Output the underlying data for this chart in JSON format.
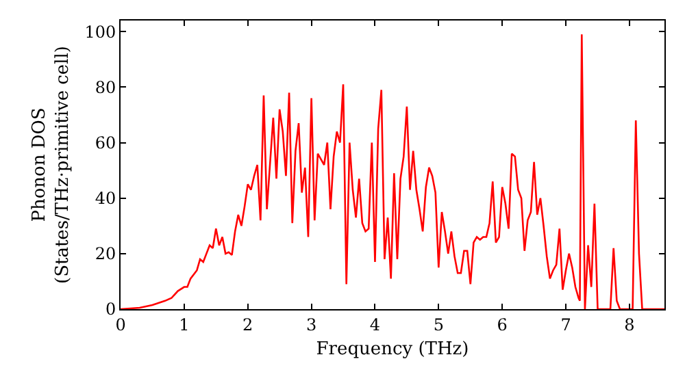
{
  "chart_data": {
    "type": "line",
    "xlabel": "Frequency (THz)",
    "ylabel": "Phonon DOS\n(States/THz·primitive cell)",
    "xlim": [
      0,
      8.55
    ],
    "ylim": [
      0,
      104
    ],
    "xticks": [
      0,
      1,
      2,
      3,
      4,
      5,
      6,
      7,
      8
    ],
    "yticks": [
      0,
      20,
      40,
      60,
      80,
      100
    ],
    "marker": "none",
    "line_style": "solid",
    "x": [
      0,
      0.3,
      0.5,
      0.7,
      0.8,
      0.9,
      1.0,
      1.05,
      1.1,
      1.2,
      1.25,
      1.3,
      1.35,
      1.4,
      1.45,
      1.5,
      1.55,
      1.6,
      1.65,
      1.7,
      1.75,
      1.8,
      1.85,
      1.9,
      1.95,
      2.0,
      2.05,
      2.1,
      2.15,
      2.2,
      2.25,
      2.3,
      2.4,
      2.45,
      2.5,
      2.55,
      2.6,
      2.65,
      2.7,
      2.75,
      2.8,
      2.85,
      2.9,
      2.95,
      3.0,
      3.05,
      3.1,
      3.15,
      3.2,
      3.25,
      3.3,
      3.35,
      3.4,
      3.45,
      3.5,
      3.55,
      3.6,
      3.65,
      3.7,
      3.75,
      3.8,
      3.85,
      3.9,
      3.95,
      4.0,
      4.05,
      4.1,
      4.15,
      4.2,
      4.25,
      4.3,
      4.35,
      4.4,
      4.45,
      4.5,
      4.55,
      4.6,
      4.65,
      4.7,
      4.75,
      4.8,
      4.85,
      4.9,
      4.95,
      5.0,
      5.05,
      5.1,
      5.15,
      5.2,
      5.25,
      5.3,
      5.35,
      5.4,
      5.45,
      5.5,
      5.55,
      5.6,
      5.65,
      5.7,
      5.75,
      5.8,
      5.85,
      5.9,
      5.95,
      6.0,
      6.05,
      6.1,
      6.15,
      6.2,
      6.25,
      6.3,
      6.35,
      6.4,
      6.45,
      6.5,
      6.55,
      6.6,
      6.65,
      6.7,
      6.75,
      6.8,
      6.85,
      6.9,
      6.95,
      7.0,
      7.05,
      7.1,
      7.15,
      7.2,
      7.22,
      7.25,
      7.3,
      7.35,
      7.4,
      7.45,
      7.5,
      7.6,
      7.7,
      7.75,
      7.8,
      7.85,
      8.0,
      8.05,
      8.1,
      8.15,
      8.2,
      8.55
    ],
    "series": [
      {
        "color": "#ff0000",
        "values": [
          0,
          0.5,
          1.5,
          3,
          4,
          6.5,
          8,
          8,
          11,
          14,
          18,
          17,
          20,
          23,
          22,
          29,
          23,
          26,
          20,
          20.5,
          19.5,
          28,
          34,
          30,
          37,
          45,
          43,
          48,
          52,
          32,
          77,
          36,
          69,
          47,
          72,
          64,
          48,
          78,
          31,
          57,
          67,
          42,
          51,
          26,
          76,
          32,
          56,
          54,
          52,
          60,
          36,
          55,
          64,
          60,
          81,
          9,
          60,
          43,
          33,
          47,
          31,
          28,
          29,
          60,
          17,
          65,
          79,
          18,
          33,
          11,
          49,
          18,
          47,
          55,
          73,
          43,
          57,
          43,
          36,
          28,
          44,
          51,
          48,
          42,
          15,
          35,
          28,
          20,
          28,
          19,
          13,
          13,
          21,
          21,
          9,
          24,
          26,
          25,
          26,
          26,
          31,
          46,
          24,
          26,
          44,
          38,
          29,
          56,
          55,
          43,
          40,
          21,
          32,
          35,
          53,
          34,
          40,
          30,
          19,
          11,
          14,
          16,
          29,
          7,
          14,
          20,
          15,
          8,
          4,
          3,
          99,
          0,
          23,
          8,
          38,
          0,
          0,
          0,
          22,
          3,
          0,
          0,
          0,
          68,
          20,
          0,
          0
        ]
      }
    ]
  }
}
